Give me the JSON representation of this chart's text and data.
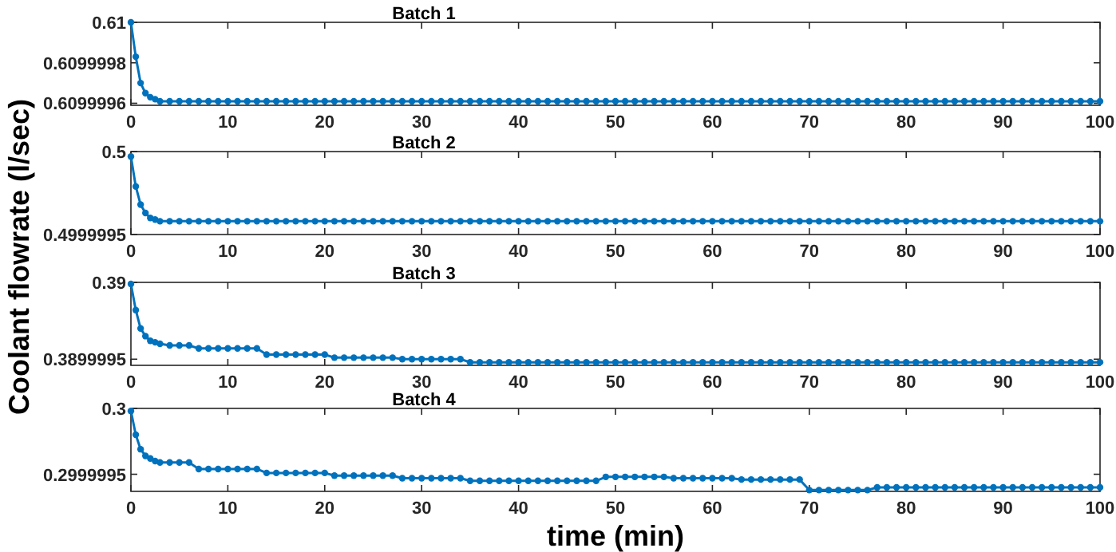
{
  "chart_data": [
    {
      "type": "line",
      "title": "Batch 1",
      "ylabel": "Coolant flowrate (l/sec)",
      "xlim": [
        0,
        100
      ],
      "xticks": [
        0,
        10,
        20,
        30,
        40,
        50,
        60,
        70,
        80,
        90,
        100
      ],
      "ylim": [
        0.60999959,
        0.61
      ],
      "yticks": [
        0.6099996,
        0.6099998,
        0.61
      ],
      "marker": "circle",
      "line_style": "solid",
      "grid": false,
      "series": [
        {
          "color": "#0072bd",
          "x": [
            0,
            0.5,
            1,
            1.5,
            2,
            2.5,
            3,
            4,
            5,
            6,
            7,
            8,
            9,
            10,
            11,
            12,
            13,
            14,
            15,
            16,
            17,
            18,
            19,
            20,
            21,
            22,
            23,
            24,
            25,
            26,
            27,
            28,
            29,
            30,
            31,
            32,
            33,
            34,
            35,
            36,
            37,
            38,
            39,
            40,
            41,
            42,
            43,
            44,
            45,
            46,
            47,
            48,
            49,
            50,
            51,
            52,
            53,
            54,
            55,
            56,
            57,
            58,
            59,
            60,
            61,
            62,
            63,
            64,
            65,
            66,
            67,
            68,
            69,
            70,
            71,
            72,
            73,
            74,
            75,
            76,
            77,
            78,
            79,
            80,
            81,
            82,
            83,
            84,
            85,
            86,
            87,
            88,
            89,
            90,
            91,
            92,
            93,
            94,
            95,
            96,
            97,
            98,
            99,
            100
          ],
          "values": [
            0.61,
            0.60999983,
            0.6099997,
            0.60999965,
            0.60999963,
            0.60999962,
            0.60999961,
            0.60999961,
            0.60999961,
            0.60999961,
            0.60999961,
            0.60999961,
            0.60999961,
            0.60999961,
            0.60999961,
            0.60999961,
            0.60999961,
            0.60999961,
            0.60999961,
            0.60999961,
            0.60999961,
            0.60999961,
            0.60999961,
            0.60999961,
            0.60999961,
            0.60999961,
            0.60999961,
            0.60999961,
            0.60999961,
            0.60999961,
            0.60999961,
            0.60999961,
            0.60999961,
            0.60999961,
            0.60999961,
            0.60999961,
            0.60999961,
            0.60999961,
            0.60999961,
            0.60999961,
            0.60999961,
            0.60999961,
            0.60999961,
            0.60999961,
            0.60999961,
            0.60999961,
            0.60999961,
            0.60999961,
            0.60999961,
            0.60999961,
            0.60999961,
            0.60999961,
            0.60999961,
            0.60999961,
            0.60999961,
            0.60999961,
            0.60999961,
            0.60999961,
            0.60999961,
            0.60999961,
            0.60999961,
            0.60999961,
            0.60999961,
            0.60999961,
            0.60999961,
            0.60999961,
            0.60999961,
            0.60999961,
            0.60999961,
            0.60999961,
            0.60999961,
            0.60999961,
            0.60999961,
            0.60999961,
            0.60999961,
            0.60999961,
            0.60999961,
            0.60999961,
            0.60999961,
            0.60999961,
            0.60999961,
            0.60999961,
            0.60999961,
            0.60999961,
            0.60999961,
            0.60999961,
            0.60999961,
            0.60999961,
            0.60999961,
            0.60999961,
            0.60999961,
            0.60999961,
            0.60999961,
            0.60999961,
            0.60999961,
            0.60999961,
            0.60999961,
            0.60999961,
            0.60999961,
            0.60999961,
            0.60999961,
            0.60999961,
            0.60999961,
            0.60999961
          ]
        }
      ]
    },
    {
      "type": "line",
      "title": "Batch 2",
      "xlim": [
        0,
        100
      ],
      "xticks": [
        0,
        10,
        20,
        30,
        40,
        50,
        60,
        70,
        80,
        90,
        100
      ],
      "ylim": [
        0.4999995,
        0.5
      ],
      "yticks": [
        0.4999995,
        0.5
      ],
      "marker": "circle",
      "line_style": "solid",
      "grid": false,
      "series": [
        {
          "color": "#0072bd",
          "x": [
            0,
            0.5,
            1,
            1.5,
            2,
            2.5,
            3,
            4,
            5,
            6,
            7,
            8,
            9,
            10,
            11,
            12,
            13,
            14,
            15,
            16,
            17,
            18,
            19,
            20,
            21,
            22,
            23,
            24,
            25,
            26,
            27,
            28,
            29,
            30,
            31,
            32,
            33,
            34,
            35,
            36,
            37,
            38,
            39,
            40,
            41,
            42,
            43,
            44,
            45,
            46,
            47,
            48,
            49,
            50,
            51,
            52,
            53,
            54,
            55,
            56,
            57,
            58,
            59,
            60,
            61,
            62,
            63,
            64,
            65,
            66,
            67,
            68,
            69,
            70,
            71,
            72,
            73,
            74,
            75,
            76,
            77,
            78,
            79,
            80,
            81,
            82,
            83,
            84,
            85,
            86,
            87,
            88,
            89,
            90,
            91,
            92,
            93,
            94,
            95,
            96,
            97,
            98,
            99,
            100
          ],
          "values": [
            0.49999997,
            0.49999979,
            0.49999968,
            0.49999963,
            0.4999996,
            0.49999959,
            0.49999958,
            0.49999958,
            0.49999958,
            0.49999958,
            0.49999958,
            0.49999958,
            0.49999958,
            0.49999958,
            0.49999958,
            0.49999958,
            0.49999958,
            0.49999958,
            0.49999958,
            0.49999958,
            0.49999958,
            0.49999958,
            0.49999958,
            0.49999958,
            0.49999958,
            0.49999958,
            0.49999958,
            0.49999958,
            0.49999958,
            0.49999958,
            0.49999958,
            0.49999958,
            0.49999958,
            0.49999958,
            0.49999958,
            0.49999958,
            0.49999958,
            0.49999958,
            0.49999958,
            0.49999958,
            0.49999958,
            0.49999958,
            0.49999958,
            0.49999958,
            0.49999958,
            0.49999958,
            0.49999958,
            0.49999958,
            0.49999958,
            0.49999958,
            0.49999958,
            0.49999958,
            0.49999958,
            0.49999958,
            0.49999958,
            0.49999958,
            0.49999958,
            0.49999958,
            0.49999958,
            0.49999958,
            0.49999958,
            0.49999958,
            0.49999958,
            0.49999958,
            0.49999958,
            0.49999958,
            0.49999958,
            0.49999958,
            0.49999958,
            0.49999958,
            0.49999958,
            0.49999958,
            0.49999958,
            0.49999958,
            0.49999958,
            0.49999958,
            0.49999958,
            0.49999958,
            0.49999958,
            0.49999958,
            0.49999958,
            0.49999958,
            0.49999958,
            0.49999958,
            0.49999958,
            0.49999958,
            0.49999958,
            0.49999958,
            0.49999958,
            0.49999958,
            0.49999958,
            0.49999958,
            0.49999958,
            0.49999958,
            0.49999958,
            0.49999958,
            0.49999958,
            0.49999958,
            0.49999958,
            0.49999958,
            0.49999958,
            0.49999958,
            0.49999958,
            0.49999958
          ]
        }
      ]
    },
    {
      "type": "line",
      "title": "Batch 3",
      "xlim": [
        0,
        100
      ],
      "xticks": [
        0,
        10,
        20,
        30,
        40,
        50,
        60,
        70,
        80,
        90,
        100
      ],
      "ylim": [
        0.38999946,
        0.39
      ],
      "yticks": [
        0.3899995,
        0.39
      ],
      "marker": "circle",
      "line_style": "solid",
      "grid": false,
      "series": [
        {
          "color": "#0072bd",
          "x": [
            0,
            0.5,
            1,
            1.5,
            2,
            2.5,
            3,
            4,
            5,
            6,
            7,
            8,
            9,
            10,
            11,
            12,
            13,
            14,
            15,
            16,
            17,
            18,
            19,
            20,
            21,
            22,
            23,
            24,
            25,
            26,
            27,
            28,
            29,
            30,
            31,
            32,
            33,
            34,
            35,
            36,
            37,
            38,
            39,
            40,
            41,
            42,
            43,
            44,
            45,
            46,
            47,
            48,
            49,
            50,
            51,
            52,
            53,
            54,
            55,
            56,
            57,
            58,
            59,
            60,
            61,
            62,
            63,
            64,
            65,
            66,
            67,
            68,
            69,
            70,
            71,
            72,
            73,
            74,
            75,
            76,
            77,
            78,
            79,
            80,
            81,
            82,
            83,
            84,
            85,
            86,
            87,
            88,
            89,
            90,
            91,
            92,
            93,
            94,
            95,
            96,
            97,
            98,
            99,
            100
          ],
          "values": [
            0.38999999,
            0.38999982,
            0.3899997,
            0.38999965,
            0.38999962,
            0.38999961,
            0.3899996,
            0.38999959,
            0.38999959,
            0.38999959,
            0.38999957,
            0.38999957,
            0.38999957,
            0.38999957,
            0.38999957,
            0.38999957,
            0.38999957,
            0.38999953,
            0.38999953,
            0.38999953,
            0.38999953,
            0.38999953,
            0.38999953,
            0.38999953,
            0.38999951,
            0.38999951,
            0.38999951,
            0.38999951,
            0.38999951,
            0.38999951,
            0.38999951,
            0.3899995,
            0.3899995,
            0.3899995,
            0.3899995,
            0.3899995,
            0.3899995,
            0.3899995,
            0.38999948,
            0.38999948,
            0.38999948,
            0.38999948,
            0.38999948,
            0.38999948,
            0.38999948,
            0.38999948,
            0.38999948,
            0.38999948,
            0.38999948,
            0.38999948,
            0.38999948,
            0.38999948,
            0.38999948,
            0.38999948,
            0.38999948,
            0.38999948,
            0.38999948,
            0.38999948,
            0.38999948,
            0.38999948,
            0.38999948,
            0.38999948,
            0.38999948,
            0.38999948,
            0.38999948,
            0.38999948,
            0.38999948,
            0.38999948,
            0.38999948,
            0.38999948,
            0.38999948,
            0.38999948,
            0.38999948,
            0.38999948,
            0.38999948,
            0.38999948,
            0.38999948,
            0.38999948,
            0.38999948,
            0.38999948,
            0.38999948,
            0.38999948,
            0.38999948,
            0.38999948,
            0.38999948,
            0.38999948,
            0.38999948,
            0.38999948,
            0.38999948,
            0.38999948,
            0.38999948,
            0.38999948,
            0.38999948,
            0.38999948,
            0.38999948,
            0.38999948,
            0.38999948,
            0.38999948,
            0.38999948,
            0.38999948,
            0.38999948,
            0.38999948,
            0.38999948,
            0.38999948
          ]
        }
      ]
    },
    {
      "type": "line",
      "title": "Batch 4",
      "xlabel": "time (min)",
      "xlim": [
        0,
        100
      ],
      "xticks": [
        0,
        10,
        20,
        30,
        40,
        50,
        60,
        70,
        80,
        90,
        100
      ],
      "ylim": [
        0.29999937,
        0.3
      ],
      "yticks": [
        0.2999995,
        0.3
      ],
      "marker": "circle",
      "line_style": "solid",
      "grid": false,
      "series": [
        {
          "color": "#0072bd",
          "x": [
            0,
            0.5,
            1,
            1.5,
            2,
            2.5,
            3,
            4,
            5,
            6,
            7,
            8,
            9,
            10,
            11,
            12,
            13,
            14,
            15,
            16,
            17,
            18,
            19,
            20,
            21,
            22,
            23,
            24,
            25,
            26,
            27,
            28,
            29,
            30,
            31,
            32,
            33,
            34,
            35,
            36,
            37,
            38,
            39,
            40,
            41,
            42,
            43,
            44,
            45,
            46,
            47,
            48,
            49,
            50,
            51,
            52,
            53,
            54,
            55,
            56,
            57,
            58,
            59,
            60,
            61,
            62,
            63,
            64,
            65,
            66,
            67,
            68,
            69,
            70,
            71,
            72,
            73,
            74,
            75,
            76,
            77,
            78,
            79,
            80,
            81,
            82,
            83,
            84,
            85,
            86,
            87,
            88,
            89,
            90,
            91,
            92,
            93,
            94,
            95,
            96,
            97,
            98,
            99,
            100
          ],
          "values": [
            0.29999998,
            0.2999998,
            0.29999969,
            0.29999964,
            0.29999962,
            0.2999996,
            0.29999959,
            0.29999959,
            0.29999959,
            0.29999959,
            0.29999954,
            0.29999954,
            0.29999954,
            0.29999954,
            0.29999954,
            0.29999954,
            0.29999954,
            0.29999951,
            0.29999951,
            0.29999951,
            0.29999951,
            0.29999951,
            0.29999951,
            0.29999951,
            0.29999949,
            0.29999949,
            0.29999949,
            0.29999949,
            0.29999949,
            0.29999949,
            0.29999949,
            0.29999947,
            0.29999947,
            0.29999947,
            0.29999947,
            0.29999947,
            0.29999947,
            0.29999947,
            0.29999945,
            0.29999945,
            0.29999945,
            0.29999945,
            0.29999945,
            0.29999945,
            0.29999945,
            0.29999945,
            0.29999945,
            0.29999945,
            0.29999945,
            0.29999945,
            0.29999945,
            0.29999945,
            0.29999948,
            0.29999948,
            0.29999948,
            0.29999948,
            0.29999948,
            0.29999948,
            0.29999948,
            0.29999947,
            0.29999947,
            0.29999947,
            0.29999947,
            0.29999947,
            0.29999947,
            0.29999947,
            0.29999946,
            0.29999946,
            0.29999946,
            0.29999946,
            0.29999946,
            0.29999946,
            0.29999946,
            0.29999938,
            0.29999938,
            0.29999938,
            0.29999938,
            0.29999938,
            0.29999938,
            0.29999938,
            0.2999994,
            0.2999994,
            0.2999994,
            0.2999994,
            0.2999994,
            0.2999994,
            0.2999994,
            0.2999994,
            0.2999994,
            0.2999994,
            0.2999994,
            0.2999994,
            0.2999994,
            0.2999994,
            0.2999994,
            0.2999994,
            0.2999994,
            0.2999994,
            0.2999994,
            0.2999994,
            0.2999994,
            0.2999994,
            0.2999994,
            0.2999994
          ]
        }
      ]
    }
  ]
}
